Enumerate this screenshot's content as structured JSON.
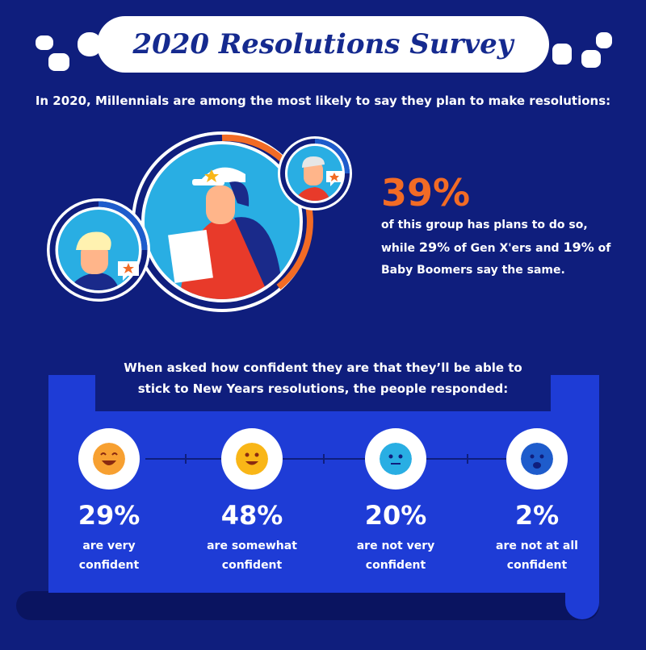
{
  "title": "2020 Resolutions Survey",
  "intro": "In 2020, Millennials are among the most likely to say they plan to make resolutions:",
  "millennials": {
    "percent": "39%",
    "line1": "of this group has plans to do so,",
    "line2_pre": "while ",
    "genx_percent": "29%",
    "line2_mid": " of Gen X'ers and ",
    "boomers_percent": "19%",
    "line2_post": " of",
    "line3": "Baby Boomers say the same."
  },
  "question": {
    "line1": "When asked how confident they are that they’ll be able to",
    "line2": "stick to New Years resolutions, the people responded:"
  },
  "responses": [
    {
      "percent": "29%",
      "line1": "are very",
      "line2": "confident",
      "face_color": "#f7a031",
      "mood": "very-happy"
    },
    {
      "percent": "48%",
      "line1": "are somewhat",
      "line2": "confident",
      "face_color": "#f9b617",
      "mood": "happy"
    },
    {
      "percent": "20%",
      "line1": "are not very",
      "line2": "confident",
      "face_color": "#29aee3",
      "mood": "neutral"
    },
    {
      "percent": "2%",
      "line1": "are not at all",
      "line2": "confident",
      "face_color": "#1e5ccc",
      "mood": "sad"
    }
  ],
  "colors": {
    "background": "#0f1e7d",
    "accent": "#f26b25",
    "scroll": "#1e3cd6",
    "avatar_ring": "#29aee3"
  }
}
